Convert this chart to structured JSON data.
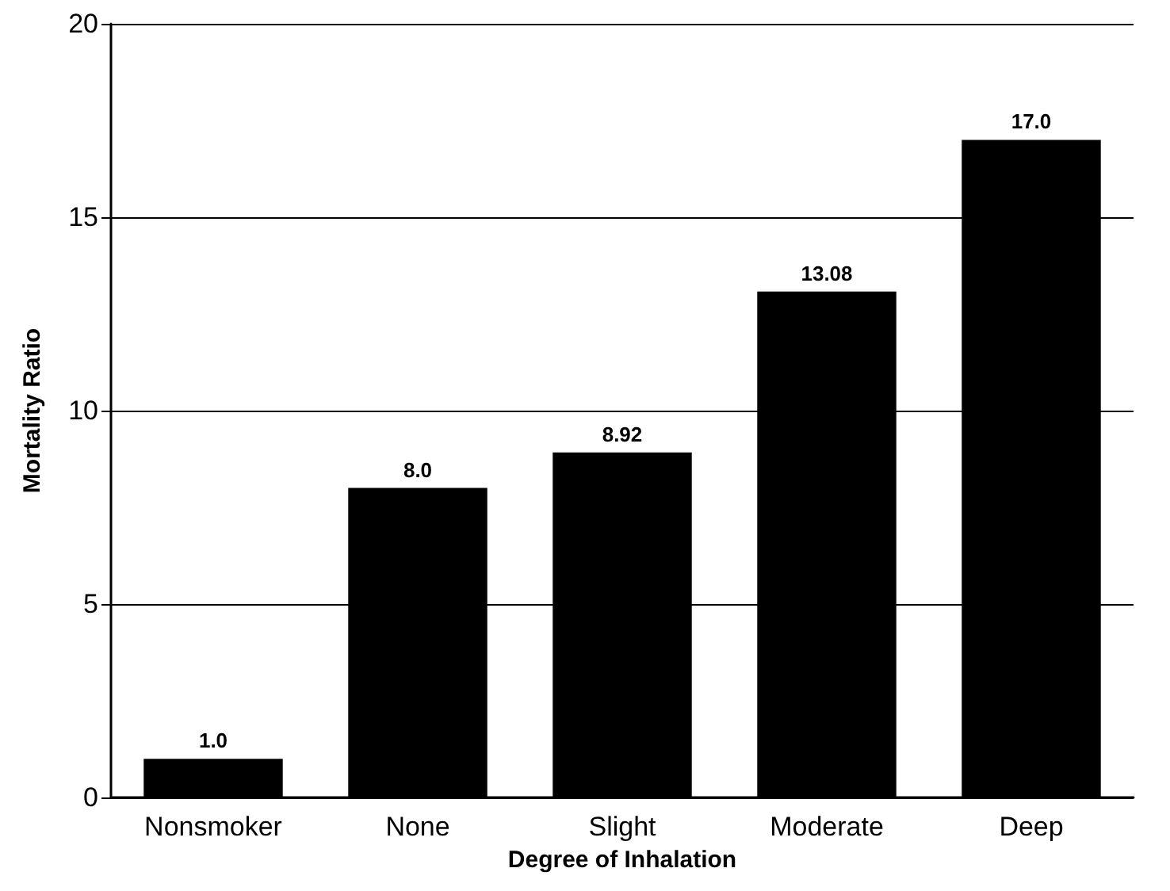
{
  "chart_data": {
    "type": "bar",
    "xlabel": "Degree of Inhalation",
    "ylabel": "Mortality Ratio",
    "categories": [
      "Nonsmoker",
      "None",
      "Slight",
      "Moderate",
      "Deep"
    ],
    "values": [
      1.0,
      8.0,
      8.92,
      13.08,
      17.0
    ],
    "value_labels": [
      "1.0",
      "8.0",
      "8.92",
      "13.08",
      "17.0"
    ],
    "color": "#000000",
    "ylim": [
      0,
      20
    ],
    "yticks": [
      0,
      5,
      10,
      15,
      20
    ],
    "grid": "y"
  }
}
